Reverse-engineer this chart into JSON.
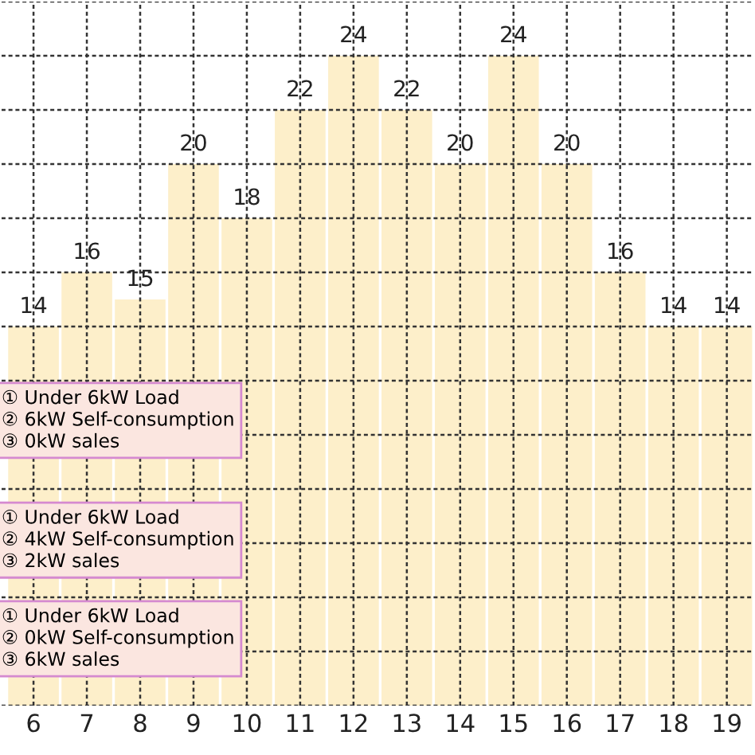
{
  "chart_data": {
    "type": "bar",
    "x": [
      6,
      7,
      8,
      9,
      10,
      11,
      12,
      13,
      14,
      15,
      16,
      17,
      18,
      19
    ],
    "values": [
      14,
      16,
      15,
      20,
      18,
      22,
      24,
      22,
      20,
      24,
      20,
      16,
      14,
      14
    ],
    "color": "#fdefca",
    "data_labels": true,
    "xlim": [
      5.4,
      19.5
    ],
    "xticks": [
      6,
      7,
      8,
      9,
      10,
      11,
      12,
      13,
      14,
      15,
      16,
      17,
      18,
      19
    ],
    "ylim": [
      0,
      26
    ],
    "yticks": [
      {
        "value": 0,
        "label": null
      },
      {
        "value": 2,
        "label": null
      },
      {
        "value": 4,
        "label": null
      },
      {
        "value": 6,
        "label": null
      },
      {
        "value": 8,
        "label": null
      },
      {
        "value": 10,
        "label": null
      },
      {
        "value": 12,
        "label": null
      },
      {
        "value": 14,
        "label": null
      },
      {
        "value": 16,
        "label": null
      },
      {
        "value": 18,
        "label": null
      },
      {
        "value": 20,
        "label": null
      },
      {
        "value": 22,
        "label": null
      },
      {
        "value": 24,
        "label": null
      },
      {
        "value": 26,
        "label": null
      }
    ],
    "tick_labels": "x",
    "grid": true,
    "annotations": [
      "① Under 6kW Load\n② 6kW Self-consumption\n③ 0kW sales",
      "① Under 6kW Load\n② 4kW Self-consumption\n③ 2kW sales",
      "① Under 6kW Load\n② 0kW Self-consumption\n③ 6kW sales"
    ]
  }
}
